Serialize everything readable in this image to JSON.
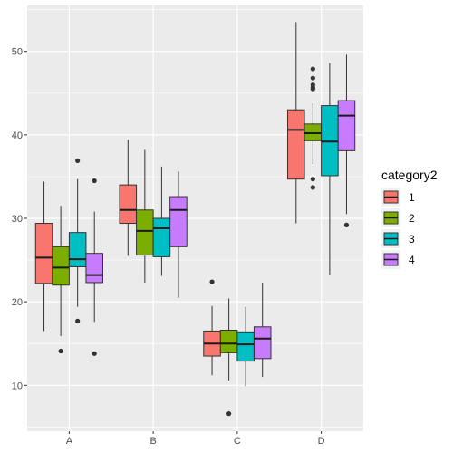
{
  "chart_data": {
    "type": "boxplot",
    "categories": [
      "A",
      "B",
      "C",
      "D"
    ],
    "ylim": [
      4.5,
      55.5
    ],
    "yticks": [
      10,
      20,
      30,
      40,
      50
    ],
    "grid": true,
    "legend": {
      "title": "category2",
      "position": "right"
    },
    "series": [
      {
        "name": "1",
        "color": "#F8766D",
        "boxes": [
          {
            "category": "A",
            "whisker_low": 16.5,
            "q1": 22.2,
            "median": 25.3,
            "q3": 29.4,
            "whisker_high": 34.4,
            "outliers": []
          },
          {
            "category": "B",
            "whisker_low": 25.5,
            "q1": 29.4,
            "median": 31.0,
            "q3": 34.0,
            "whisker_high": 39.4,
            "outliers": []
          },
          {
            "category": "C",
            "whisker_low": 11.2,
            "q1": 13.5,
            "median": 15.0,
            "q3": 16.5,
            "whisker_high": 19.5,
            "outliers": [
              22.4
            ]
          },
          {
            "category": "D",
            "whisker_low": 29.4,
            "q1": 34.7,
            "median": 40.6,
            "q3": 43.0,
            "whisker_high": 53.5,
            "outliers": []
          }
        ]
      },
      {
        "name": "2",
        "color": "#7CAE00",
        "boxes": [
          {
            "category": "A",
            "whisker_low": 15.9,
            "q1": 22.0,
            "median": 24.1,
            "q3": 26.6,
            "whisker_high": 31.5,
            "outliers": [
              14.1
            ]
          },
          {
            "category": "B",
            "whisker_low": 22.3,
            "q1": 25.6,
            "median": 28.5,
            "q3": 31.0,
            "whisker_high": 38.2,
            "outliers": []
          },
          {
            "category": "C",
            "whisker_low": 10.6,
            "q1": 13.9,
            "median": 15.0,
            "q3": 16.6,
            "whisker_high": 20.4,
            "outliers": [
              6.6
            ]
          },
          {
            "category": "D",
            "whisker_low": 36.5,
            "q1": 39.3,
            "median": 40.2,
            "q3": 41.3,
            "whisker_high": 43.8,
            "outliers": [
              33.7,
              34.7,
              45.5,
              45.7,
              46.0,
              46.8,
              47.9
            ]
          }
        ]
      },
      {
        "name": "3",
        "color": "#00BFC4",
        "boxes": [
          {
            "category": "A",
            "whisker_low": 19.4,
            "q1": 24.2,
            "median": 25.1,
            "q3": 28.3,
            "whisker_high": 34.7,
            "outliers": [
              17.7,
              36.9
            ]
          },
          {
            "category": "B",
            "whisker_low": 23.1,
            "q1": 25.4,
            "median": 28.8,
            "q3": 30.0,
            "whisker_high": 36.2,
            "outliers": []
          },
          {
            "category": "C",
            "whisker_low": 9.9,
            "q1": 12.9,
            "median": 14.9,
            "q3": 16.4,
            "whisker_high": 19.4,
            "outliers": []
          },
          {
            "category": "D",
            "whisker_low": 23.2,
            "q1": 35.1,
            "median": 39.2,
            "q3": 43.5,
            "whisker_high": 48.6,
            "outliers": []
          }
        ]
      },
      {
        "name": "4",
        "color": "#C77CFF",
        "boxes": [
          {
            "category": "A",
            "whisker_low": 17.6,
            "q1": 22.3,
            "median": 23.2,
            "q3": 25.8,
            "whisker_high": 30.8,
            "outliers": [
              13.8,
              34.5
            ]
          },
          {
            "category": "B",
            "whisker_low": 20.5,
            "q1": 26.6,
            "median": 31.0,
            "q3": 32.6,
            "whisker_high": 35.6,
            "outliers": []
          },
          {
            "category": "C",
            "whisker_low": 11.0,
            "q1": 13.2,
            "median": 15.6,
            "q3": 17.0,
            "whisker_high": 22.3,
            "outliers": []
          },
          {
            "category": "D",
            "whisker_low": 30.5,
            "q1": 38.1,
            "median": 42.3,
            "q3": 44.1,
            "whisker_high": 49.6,
            "outliers": [
              29.2
            ]
          }
        ]
      }
    ]
  }
}
